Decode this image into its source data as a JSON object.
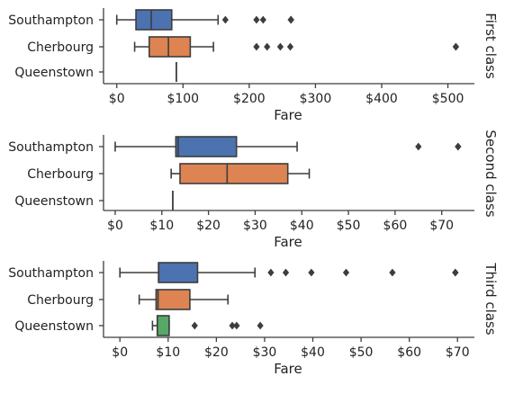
{
  "chart_data": [
    {
      "type": "box",
      "row_title": "First class",
      "xlabel": "Fare",
      "x_ticks": [
        0,
        100,
        200,
        300,
        400,
        500
      ],
      "x_tick_labels": [
        "$0",
        "$100",
        "$200",
        "$300",
        "$400",
        "$500"
      ],
      "xlim": [
        -20,
        540
      ],
      "categories": [
        "Southampton",
        "Cherbourg",
        "Queenstown"
      ],
      "boxes": [
        {
          "category": "Southampton",
          "q1": 29,
          "median": 52,
          "q3": 83,
          "whisker_low": 0,
          "whisker_high": 153,
          "outliers": [
            164,
            211,
            221,
            263,
            263,
            263
          ],
          "color": "#4c72b0"
        },
        {
          "category": "Cherbourg",
          "q1": 49,
          "median": 78,
          "q3": 111,
          "whisker_low": 27,
          "whisker_high": 146,
          "outliers": [
            211,
            227,
            247,
            262,
            512,
            512
          ],
          "color": "#dd8452"
        },
        {
          "category": "Queenstown",
          "q1": 90,
          "median": 90,
          "q3": 90,
          "whisker_low": 90,
          "whisker_high": 90,
          "outliers": [],
          "color": "#55a868"
        }
      ]
    },
    {
      "type": "box",
      "row_title": "Second class",
      "xlabel": "Fare",
      "x_ticks": [
        0,
        10,
        20,
        30,
        40,
        50,
        60,
        70
      ],
      "x_tick_labels": [
        "$0",
        "$10",
        "$20",
        "$30",
        "$40",
        "$50",
        "$60",
        "$70"
      ],
      "xlim": [
        -2.5,
        77
      ],
      "categories": [
        "Southampton",
        "Cherbourg",
        "Queenstown"
      ],
      "boxes": [
        {
          "category": "Southampton",
          "q1": 13,
          "median": 13.5,
          "q3": 26,
          "whisker_low": 0,
          "whisker_high": 39,
          "outliers": [
            65,
            73.5,
            73.5
          ],
          "color": "#4c72b0"
        },
        {
          "category": "Cherbourg",
          "q1": 13.9,
          "median": 24,
          "q3": 37,
          "whisker_low": 12,
          "whisker_high": 41.6,
          "outliers": [],
          "color": "#dd8452"
        },
        {
          "category": "Queenstown",
          "q1": 12.35,
          "median": 12.35,
          "q3": 12.35,
          "whisker_low": 12.35,
          "whisker_high": 12.35,
          "outliers": [],
          "color": "#55a868"
        }
      ]
    },
    {
      "type": "box",
      "row_title": "Third class",
      "xlabel": "Fare",
      "x_ticks": [
        0,
        10,
        20,
        30,
        40,
        50,
        60,
        70
      ],
      "x_tick_labels": [
        "$0",
        "$10",
        "$20",
        "$30",
        "$40",
        "$50",
        "$60",
        "$70"
      ],
      "xlim": [
        -3.4,
        73.5
      ],
      "categories": [
        "Southampton",
        "Cherbourg",
        "Queenstown"
      ],
      "boxes": [
        {
          "category": "Southampton",
          "q1": 8,
          "median": 8.05,
          "q3": 16.1,
          "whisker_low": 0,
          "whisker_high": 28,
          "outliers": [
            31.3,
            34.4,
            39.7,
            46.9,
            56.5,
            69.55,
            69.55
          ],
          "color": "#4c72b0"
        },
        {
          "category": "Cherbourg",
          "q1": 7.5,
          "median": 7.9,
          "q3": 14.5,
          "whisker_low": 4,
          "whisker_high": 22.4,
          "outliers": [],
          "color": "#dd8452"
        },
        {
          "category": "Queenstown",
          "q1": 7.75,
          "median": 7.75,
          "q3": 10.2,
          "whisker_low": 6.75,
          "whisker_high": 10.2,
          "outliers": [
            15.5,
            23.3,
            24.2,
            29.1
          ],
          "color": "#55a868"
        }
      ]
    }
  ]
}
